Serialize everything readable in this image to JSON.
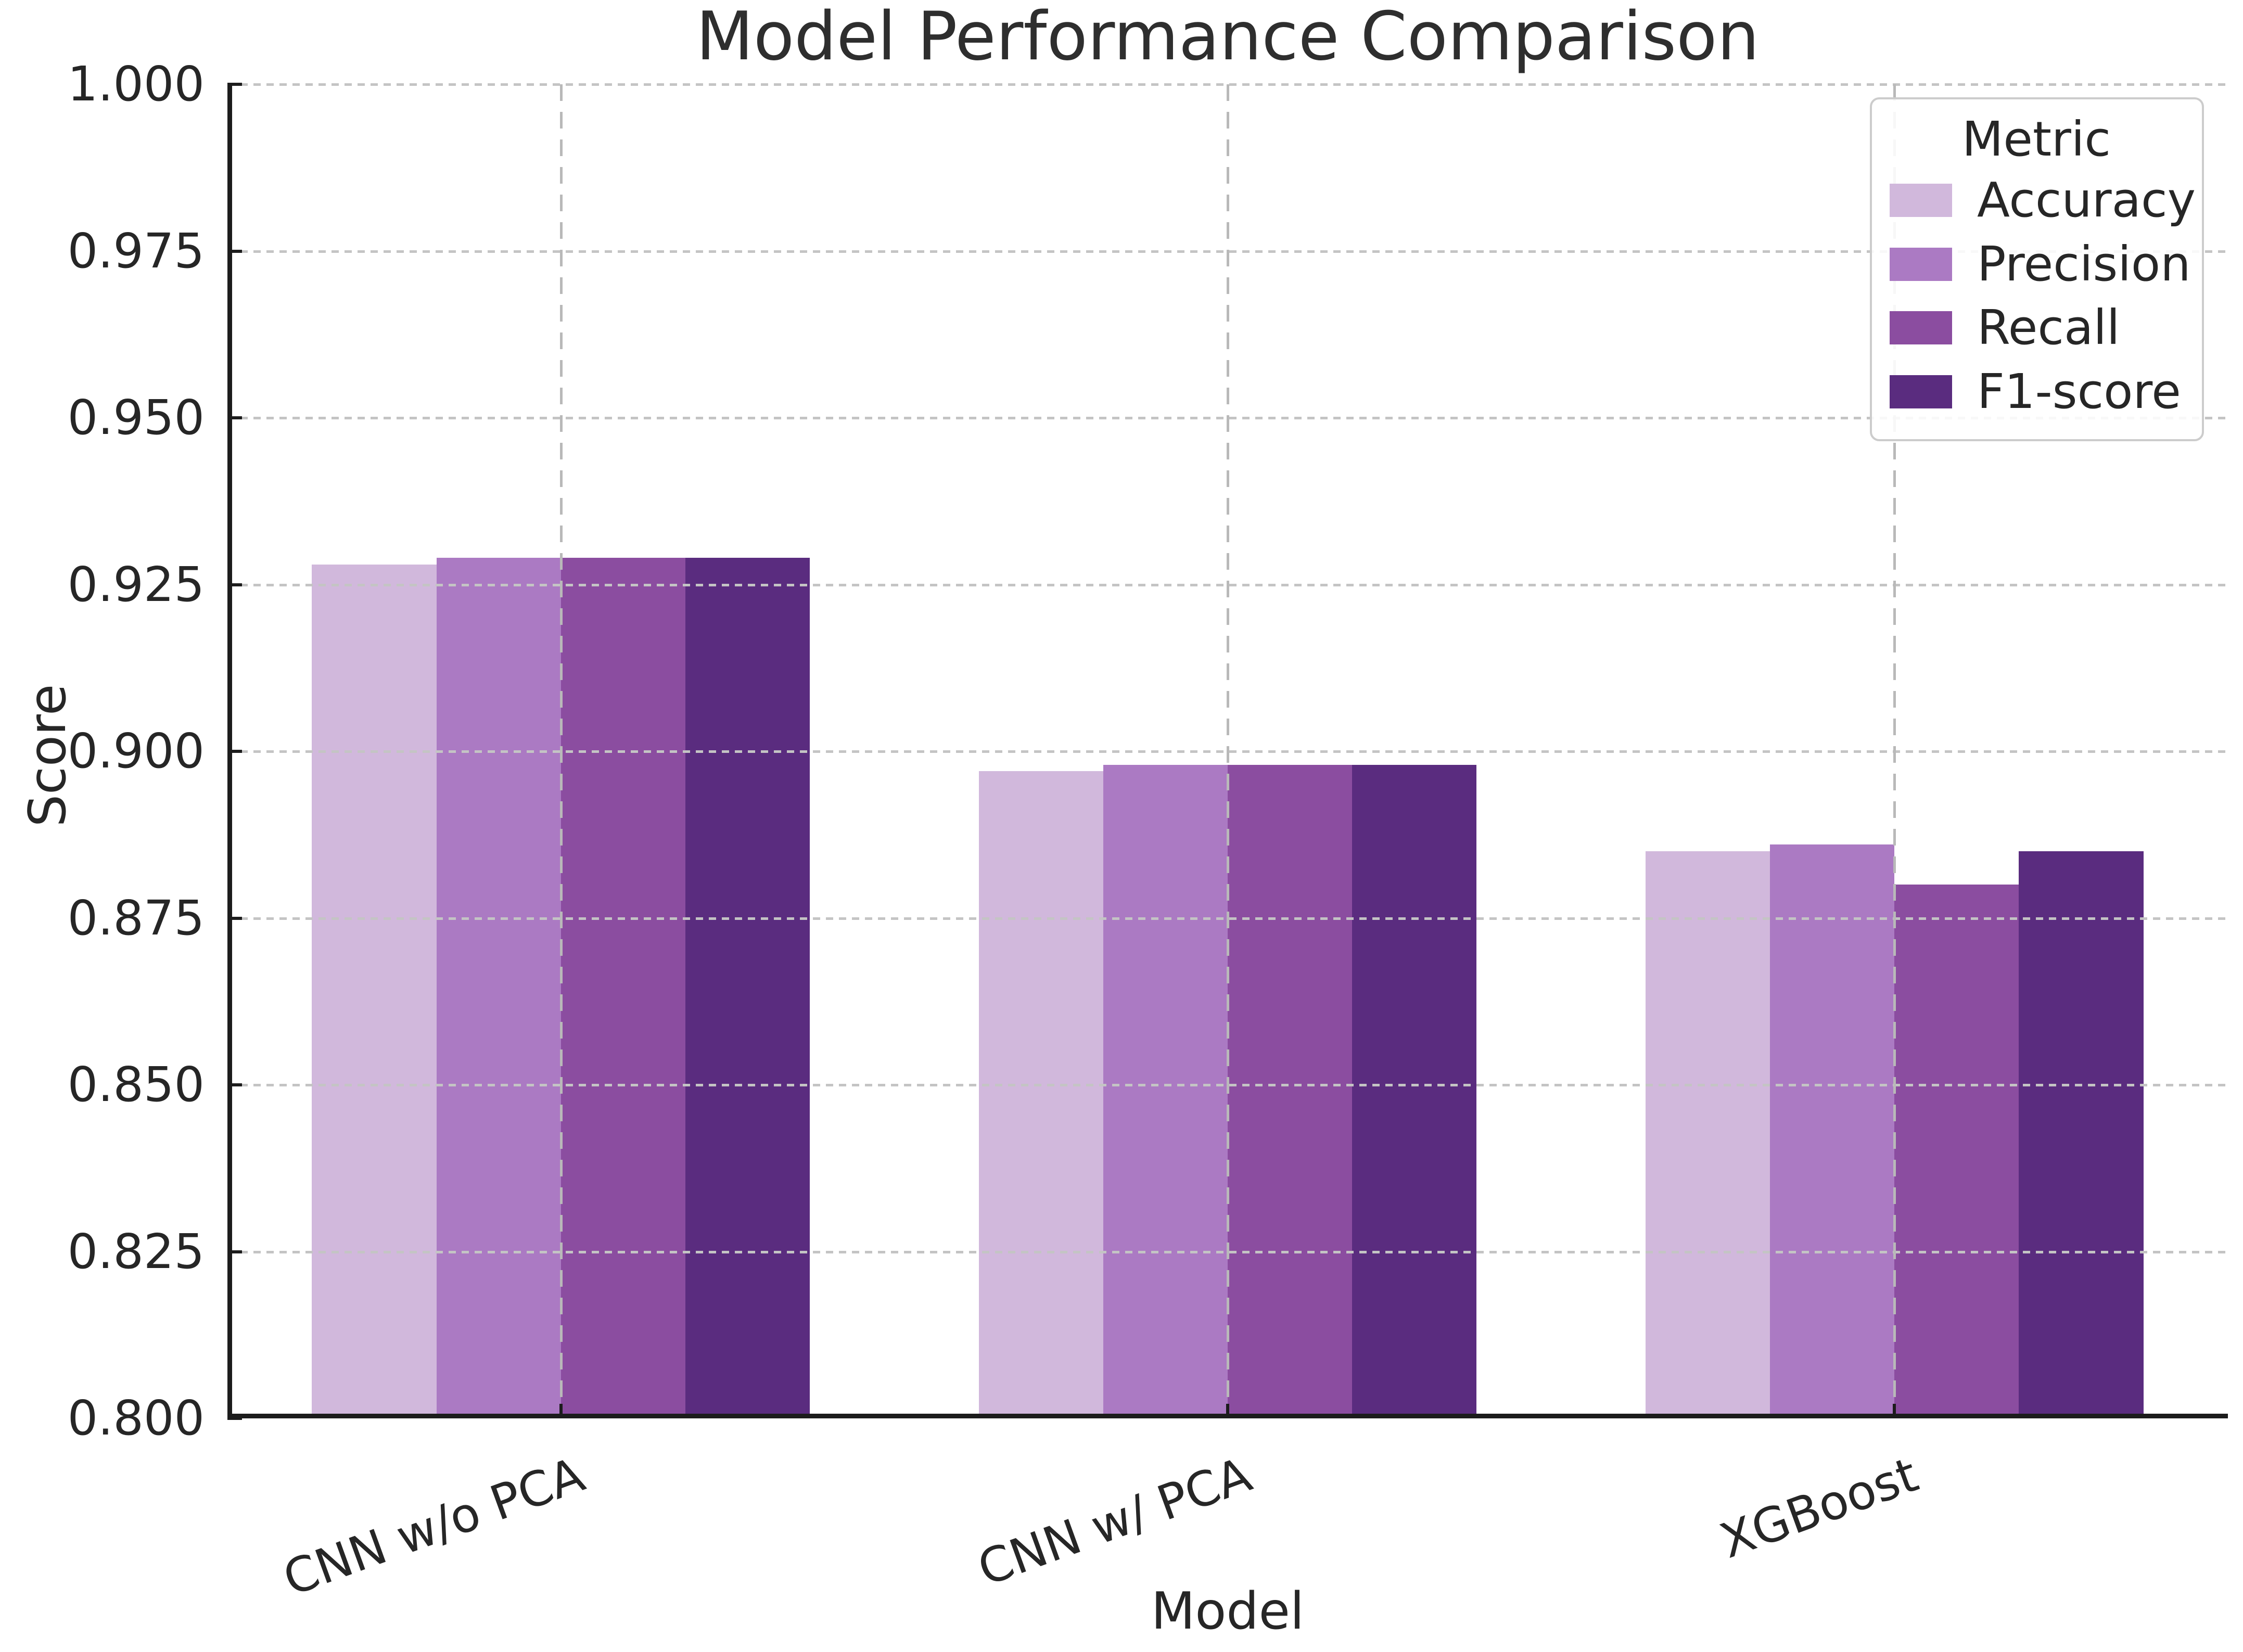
{
  "chart_data": {
    "type": "bar",
    "title": "Model Performance Comparison",
    "xlabel": "Model",
    "ylabel": "Score",
    "categories": [
      "CNN w/o PCA",
      "CNN w/ PCA",
      "XGBoost"
    ],
    "series": [
      {
        "name": "Accuracy",
        "color": "#d1b8dc",
        "values": [
          0.928,
          0.897,
          0.885
        ]
      },
      {
        "name": "Precision",
        "color": "#ab7ac3",
        "values": [
          0.929,
          0.898,
          0.886
        ]
      },
      {
        "name": "Recall",
        "color": "#8b4da0",
        "values": [
          0.929,
          0.898,
          0.88
        ]
      },
      {
        "name": "F1-score",
        "color": "#5a2c7f",
        "values": [
          0.929,
          0.898,
          0.885
        ]
      }
    ],
    "ylim": [
      0.8,
      1.0
    ],
    "yticks": [
      "0.800",
      "0.825",
      "0.850",
      "0.875",
      "0.900",
      "0.925",
      "0.950",
      "0.975",
      "1.000"
    ],
    "grid": true,
    "legend": {
      "title": "Metric",
      "position": "upper right"
    },
    "text_color": "#262626",
    "spine_color": "#1c1c1c",
    "grid_color": "#c4c4c4"
  }
}
